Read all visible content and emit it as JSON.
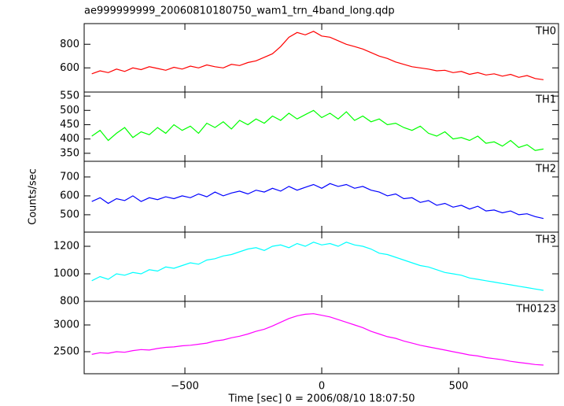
{
  "chart_data": {
    "type": "line",
    "title": "ae999999999_20060810180750_wam1_trn_4band_long.qdp",
    "ylabel": "Counts/sec",
    "xlabel": "Time [sec] 0 = 2006/08/10 18:07:50",
    "xlim": [
      -868,
      865
    ],
    "xticks": [
      {
        "value": -500,
        "label": "−500"
      },
      0,
      500
    ],
    "x": [
      -840,
      -810,
      -780,
      -750,
      -720,
      -690,
      -660,
      -630,
      -600,
      -570,
      -540,
      -510,
      -480,
      -450,
      -420,
      -390,
      -360,
      -330,
      -300,
      -270,
      -240,
      -210,
      -180,
      -150,
      -120,
      -90,
      -60,
      -30,
      0,
      30,
      60,
      90,
      120,
      150,
      180,
      210,
      240,
      270,
      300,
      330,
      360,
      390,
      420,
      450,
      480,
      510,
      540,
      570,
      600,
      630,
      660,
      690,
      720,
      750,
      780,
      810
    ],
    "panels": [
      {
        "name": "TH0",
        "color": "#ff0000",
        "ylim": [
          395,
          975
        ],
        "yticks": [
          600,
          800
        ],
        "values": [
          550,
          575,
          560,
          590,
          570,
          600,
          585,
          610,
          595,
          580,
          605,
          590,
          615,
          600,
          625,
          610,
          600,
          630,
          620,
          645,
          660,
          690,
          720,
          780,
          860,
          900,
          880,
          910,
          870,
          860,
          830,
          800,
          780,
          760,
          730,
          700,
          680,
          650,
          630,
          610,
          600,
          590,
          575,
          580,
          560,
          570,
          545,
          560,
          540,
          550,
          530,
          545,
          520,
          535,
          510,
          500
        ]
      },
      {
        "name": "TH1",
        "color": "#00ff00",
        "ylim": [
          322,
          564
        ],
        "yticks": [
          350,
          400,
          450,
          500,
          550
        ],
        "values": [
          410,
          430,
          395,
          420,
          440,
          405,
          425,
          415,
          440,
          420,
          450,
          430,
          445,
          420,
          455,
          440,
          460,
          435,
          465,
          450,
          470,
          455,
          480,
          465,
          490,
          470,
          485,
          500,
          475,
          490,
          470,
          495,
          465,
          480,
          460,
          470,
          450,
          455,
          440,
          430,
          445,
          420,
          410,
          425,
          400,
          405,
          395,
          410,
          385,
          390,
          375,
          395,
          370,
          380,
          360,
          365
        ]
      },
      {
        "name": "TH2",
        "color": "#0000ff",
        "ylim": [
          408,
          783
        ],
        "yticks": [
          500,
          600,
          700
        ],
        "values": [
          570,
          590,
          560,
          585,
          575,
          600,
          570,
          590,
          580,
          595,
          585,
          600,
          590,
          610,
          595,
          620,
          600,
          615,
          625,
          610,
          630,
          620,
          640,
          625,
          650,
          630,
          645,
          660,
          640,
          665,
          650,
          660,
          640,
          650,
          630,
          620,
          600,
          610,
          585,
          590,
          565,
          575,
          550,
          560,
          540,
          550,
          530,
          545,
          520,
          525,
          510,
          520,
          500,
          505,
          490,
          480
        ]
      },
      {
        "name": "TH3",
        "color": "#00ffff",
        "ylim": [
          800,
          1303
        ],
        "yticks": [
          800,
          1000,
          1200
        ],
        "values": [
          950,
          980,
          960,
          1000,
          990,
          1010,
          1000,
          1030,
          1020,
          1050,
          1040,
          1060,
          1080,
          1070,
          1100,
          1110,
          1130,
          1140,
          1160,
          1180,
          1190,
          1170,
          1200,
          1210,
          1190,
          1220,
          1200,
          1230,
          1210,
          1220,
          1200,
          1230,
          1210,
          1200,
          1180,
          1150,
          1140,
          1120,
          1100,
          1080,
          1060,
          1050,
          1030,
          1010,
          1000,
          990,
          970,
          960,
          950,
          940,
          930,
          920,
          910,
          900,
          890,
          880
        ]
      },
      {
        "name": "TH0123",
        "color": "#ff00ff",
        "ylim": [
          2088,
          3441
        ],
        "yticks": [
          2500,
          3000
        ],
        "values": [
          2450,
          2480,
          2470,
          2500,
          2490,
          2520,
          2540,
          2530,
          2560,
          2580,
          2590,
          2610,
          2620,
          2640,
          2660,
          2700,
          2720,
          2760,
          2790,
          2830,
          2880,
          2920,
          2980,
          3050,
          3120,
          3170,
          3200,
          3210,
          3180,
          3150,
          3100,
          3050,
          3000,
          2950,
          2880,
          2830,
          2780,
          2750,
          2700,
          2660,
          2620,
          2590,
          2560,
          2530,
          2500,
          2470,
          2440,
          2420,
          2390,
          2370,
          2350,
          2320,
          2300,
          2280,
          2260,
          2250
        ]
      }
    ]
  }
}
